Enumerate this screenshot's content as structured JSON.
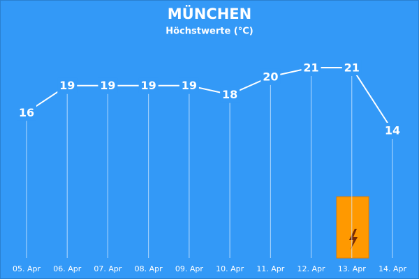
{
  "chart_data": {
    "type": "line",
    "title": "MÜNCHEN",
    "subtitle": "Höchstwerte (°C)",
    "categories": [
      "05. Apr",
      "06. Apr",
      "07. Apr",
      "08. Apr",
      "09. Apr",
      "10. Apr",
      "11. Apr",
      "12. Apr",
      "13. Apr",
      "14. Apr"
    ],
    "values": [
      16,
      19,
      19,
      19,
      19,
      18,
      20,
      21,
      21,
      14
    ],
    "color": "#ffffff"
  }
}
